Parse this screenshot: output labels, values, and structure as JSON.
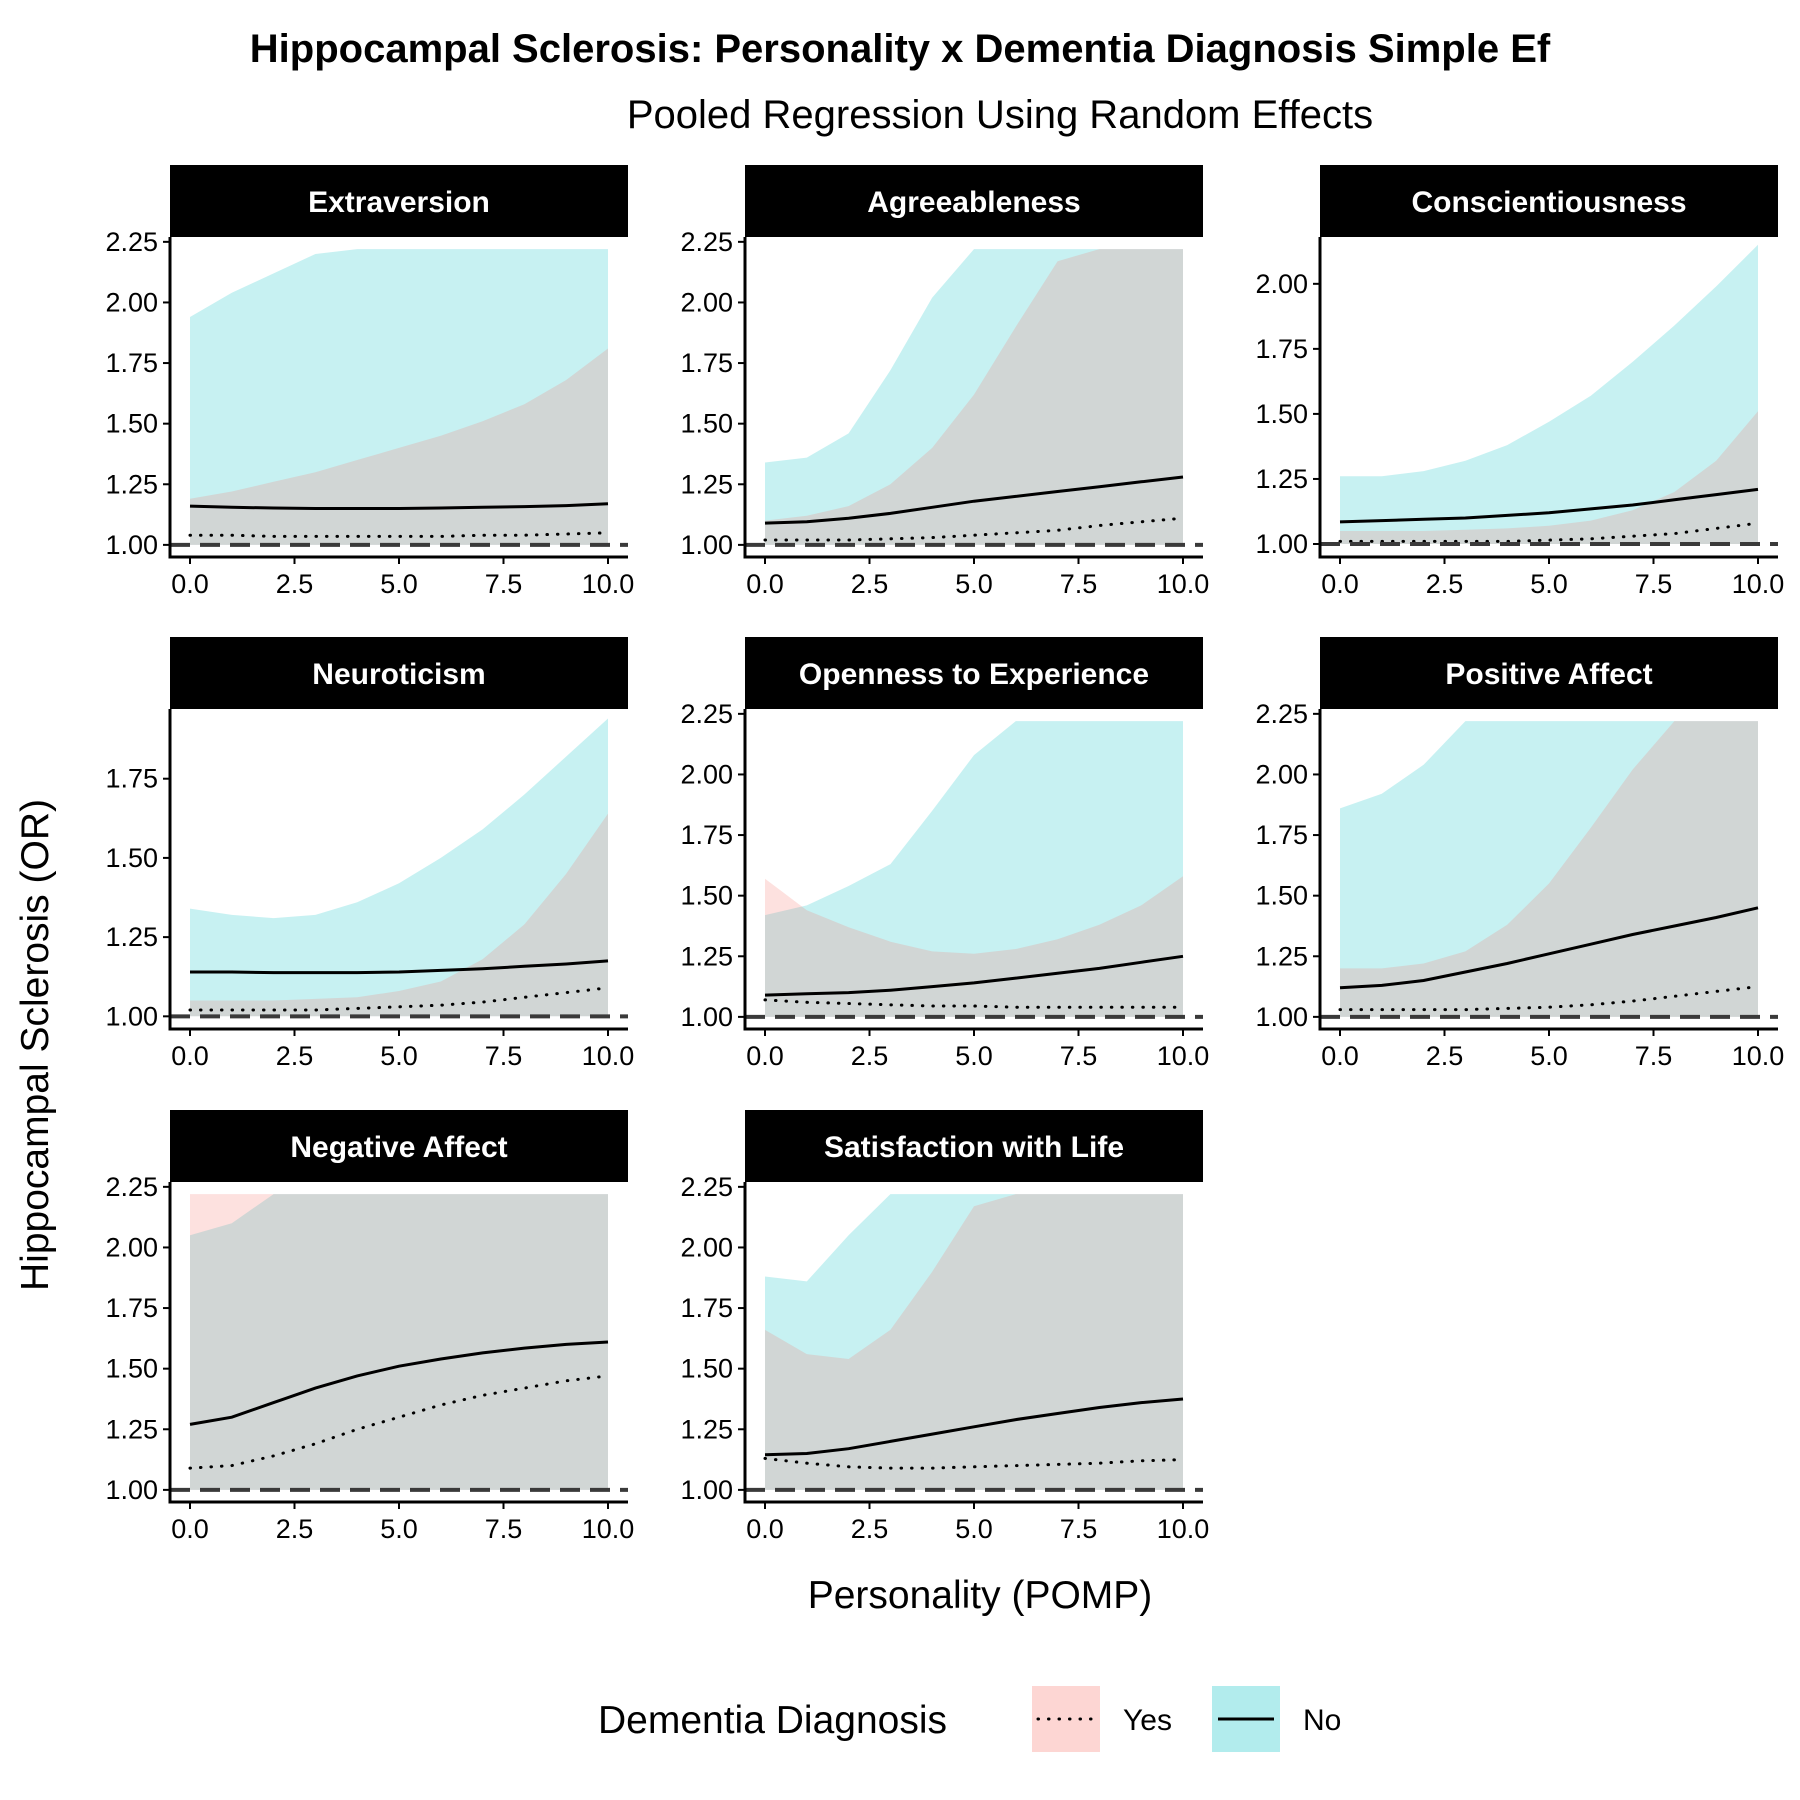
{
  "chart_data": {
    "type": "line",
    "title": "Hippocampal Sclerosis: Personality x Dementia Diagnosis Simple Ef",
    "subtitle": "Pooled Regression Using Random Effects",
    "xlabel": "Personality (POMP)",
    "ylabel": "Hippocampal Sclerosis (OR)",
    "reference_line": 1.0,
    "colors": {
      "yes_ribbon": "#f8766d",
      "no_ribbon": "#00bfc4",
      "line": "#000000",
      "strip": "#000000",
      "refline": "#3a3a3a"
    },
    "legend": {
      "title": "Dementia Diagnosis",
      "placement": "bottom",
      "items": [
        {
          "label": "Yes",
          "linetype": "dotted",
          "fill": "#f8766d"
        },
        {
          "label": "No",
          "linetype": "solid",
          "fill": "#00bfc4"
        }
      ]
    },
    "panels": [
      {
        "name": "Extraversion",
        "ylim": [
          0.95,
          2.27
        ],
        "yticks": [
          "1.00",
          "1.25",
          "1.50",
          "1.75",
          "2.00",
          "2.25"
        ],
        "xticks": [
          "0.0",
          "2.5",
          "5.0",
          "7.5",
          "10.0"
        ],
        "x": [
          0,
          1,
          2,
          3,
          4,
          5,
          6,
          7,
          8,
          9,
          10
        ],
        "yes": {
          "est": [
            1.04,
            1.04,
            1.035,
            1.035,
            1.035,
            1.035,
            1.035,
            1.04,
            1.04,
            1.045,
            1.05
          ],
          "lo": [
            1.0,
            1.0,
            1.0,
            1.0,
            1.0,
            1.0,
            1.0,
            1.0,
            1.0,
            1.0,
            1.0
          ],
          "hi": [
            1.19,
            1.22,
            1.26,
            1.3,
            1.35,
            1.4,
            1.45,
            1.51,
            1.58,
            1.68,
            1.81
          ]
        },
        "no": {
          "est": [
            1.16,
            1.155,
            1.152,
            1.15,
            1.15,
            1.15,
            1.152,
            1.155,
            1.158,
            1.162,
            1.17
          ],
          "lo": [
            1.0,
            1.0,
            1.0,
            1.0,
            1.0,
            1.0,
            1.0,
            1.0,
            1.0,
            1.0,
            1.0
          ],
          "hi": [
            1.94,
            2.04,
            2.12,
            2.2,
            2.22,
            2.22,
            2.22,
            2.22,
            2.22,
            2.22,
            2.22
          ]
        }
      },
      {
        "name": "Agreeableness",
        "ylim": [
          0.95,
          2.27
        ],
        "yticks": [
          "1.00",
          "1.25",
          "1.50",
          "1.75",
          "2.00",
          "2.25"
        ],
        "xticks": [
          "0.0",
          "2.5",
          "5.0",
          "7.5",
          "10.0"
        ],
        "x": [
          0,
          1,
          2,
          3,
          4,
          5,
          6,
          7,
          8,
          9,
          10
        ],
        "yes": {
          "est": [
            1.02,
            1.02,
            1.02,
            1.025,
            1.03,
            1.04,
            1.05,
            1.06,
            1.08,
            1.095,
            1.11
          ],
          "lo": [
            1.0,
            1.0,
            1.0,
            1.0,
            1.0,
            1.0,
            1.0,
            1.0,
            1.0,
            1.0,
            1.0
          ],
          "hi": [
            1.1,
            1.12,
            1.16,
            1.25,
            1.4,
            1.62,
            1.9,
            2.17,
            2.22,
            2.22,
            2.22
          ]
        },
        "no": {
          "est": [
            1.09,
            1.095,
            1.11,
            1.13,
            1.155,
            1.18,
            1.2,
            1.22,
            1.24,
            1.26,
            1.28
          ],
          "lo": [
            1.0,
            1.0,
            1.0,
            1.0,
            1.0,
            1.0,
            1.0,
            1.0,
            1.0,
            1.0,
            1.0
          ],
          "hi": [
            1.34,
            1.36,
            1.46,
            1.72,
            2.02,
            2.22,
            2.22,
            2.22,
            2.22,
            2.22,
            2.22
          ]
        }
      },
      {
        "name": "Conscientiousness",
        "ylim": [
          0.95,
          2.18
        ],
        "yticks": [
          "1.00",
          "1.25",
          "1.50",
          "1.75",
          "2.00"
        ],
        "xticks": [
          "0.0",
          "2.5",
          "5.0",
          "7.5",
          "10.0"
        ],
        "x": [
          0,
          1,
          2,
          3,
          4,
          5,
          6,
          7,
          8,
          9,
          10
        ],
        "yes": {
          "est": [
            1.01,
            1.01,
            1.01,
            1.01,
            1.01,
            1.015,
            1.02,
            1.03,
            1.04,
            1.06,
            1.08
          ],
          "lo": [
            1.0,
            1.0,
            1.0,
            1.0,
            1.0,
            1.0,
            1.0,
            1.0,
            1.0,
            1.0,
            1.0
          ],
          "hi": [
            1.05,
            1.05,
            1.05,
            1.055,
            1.06,
            1.07,
            1.09,
            1.13,
            1.2,
            1.32,
            1.51
          ]
        },
        "no": {
          "est": [
            1.085,
            1.09,
            1.095,
            1.1,
            1.11,
            1.12,
            1.135,
            1.15,
            1.17,
            1.19,
            1.21
          ],
          "lo": [
            1.0,
            1.0,
            1.0,
            1.0,
            1.0,
            1.0,
            1.0,
            1.0,
            1.0,
            1.0,
            1.0
          ],
          "hi": [
            1.26,
            1.26,
            1.28,
            1.32,
            1.38,
            1.47,
            1.57,
            1.7,
            1.84,
            1.99,
            2.15
          ]
        }
      },
      {
        "name": "Neuroticism",
        "ylim": [
          0.96,
          1.97
        ],
        "yticks": [
          "1.00",
          "1.25",
          "1.50",
          "1.75"
        ],
        "xticks": [
          "0.0",
          "2.5",
          "5.0",
          "7.5",
          "10.0"
        ],
        "x": [
          0,
          1,
          2,
          3,
          4,
          5,
          6,
          7,
          8,
          9,
          10
        ],
        "yes": {
          "est": [
            1.02,
            1.02,
            1.02,
            1.02,
            1.025,
            1.03,
            1.035,
            1.045,
            1.06,
            1.075,
            1.09
          ],
          "lo": [
            1.0,
            1.0,
            1.0,
            1.0,
            1.0,
            1.0,
            1.0,
            1.0,
            1.0,
            1.0,
            1.0
          ],
          "hi": [
            1.05,
            1.05,
            1.05,
            1.055,
            1.06,
            1.08,
            1.11,
            1.18,
            1.29,
            1.45,
            1.64
          ]
        },
        "no": {
          "est": [
            1.14,
            1.14,
            1.138,
            1.138,
            1.138,
            1.14,
            1.145,
            1.15,
            1.158,
            1.165,
            1.175
          ],
          "lo": [
            1.0,
            1.0,
            1.0,
            1.0,
            1.0,
            1.0,
            1.0,
            1.0,
            1.0,
            1.0,
            1.0
          ],
          "hi": [
            1.34,
            1.32,
            1.31,
            1.32,
            1.36,
            1.42,
            1.5,
            1.59,
            1.7,
            1.82,
            1.94
          ]
        }
      },
      {
        "name": "Openness to Experience",
        "ylim": [
          0.95,
          2.27
        ],
        "yticks": [
          "1.00",
          "1.25",
          "1.50",
          "1.75",
          "2.00",
          "2.25"
        ],
        "xticks": [
          "0.0",
          "2.5",
          "5.0",
          "7.5",
          "10.0"
        ],
        "x": [
          0,
          1,
          2,
          3,
          4,
          5,
          6,
          7,
          8,
          9,
          10
        ],
        "yes": {
          "est": [
            1.07,
            1.06,
            1.055,
            1.05,
            1.045,
            1.045,
            1.04,
            1.04,
            1.04,
            1.04,
            1.04
          ],
          "lo": [
            1.0,
            1.0,
            1.0,
            1.0,
            1.0,
            1.0,
            1.0,
            1.0,
            1.0,
            1.0,
            1.0
          ],
          "hi": [
            1.57,
            1.44,
            1.37,
            1.31,
            1.27,
            1.26,
            1.28,
            1.32,
            1.38,
            1.46,
            1.58
          ]
        },
        "no": {
          "est": [
            1.09,
            1.095,
            1.1,
            1.11,
            1.125,
            1.14,
            1.16,
            1.18,
            1.2,
            1.225,
            1.25
          ],
          "lo": [
            1.0,
            1.0,
            1.0,
            1.0,
            1.0,
            1.0,
            1.0,
            1.0,
            1.0,
            1.0,
            1.0
          ],
          "hi": [
            1.42,
            1.46,
            1.54,
            1.63,
            1.85,
            2.08,
            2.22,
            2.22,
            2.22,
            2.22,
            2.22
          ]
        }
      },
      {
        "name": "Positive Affect",
        "ylim": [
          0.95,
          2.27
        ],
        "yticks": [
          "1.00",
          "1.25",
          "1.50",
          "1.75",
          "2.00",
          "2.25"
        ],
        "xticks": [
          "0.0",
          "2.5",
          "5.0",
          "7.5",
          "10.0"
        ],
        "x": [
          0,
          1,
          2,
          3,
          4,
          5,
          6,
          7,
          8,
          9,
          10
        ],
        "yes": {
          "est": [
            1.03,
            1.03,
            1.03,
            1.03,
            1.035,
            1.04,
            1.05,
            1.065,
            1.085,
            1.105,
            1.125
          ],
          "lo": [
            1.0,
            1.0,
            1.0,
            1.0,
            1.0,
            1.0,
            1.0,
            1.0,
            1.0,
            1.0,
            1.0
          ],
          "hi": [
            1.2,
            1.2,
            1.22,
            1.27,
            1.38,
            1.55,
            1.78,
            2.02,
            2.22,
            2.22,
            2.22
          ]
        },
        "no": {
          "est": [
            1.12,
            1.13,
            1.15,
            1.185,
            1.22,
            1.26,
            1.3,
            1.34,
            1.375,
            1.41,
            1.45
          ],
          "lo": [
            1.0,
            1.0,
            1.0,
            1.0,
            1.0,
            1.0,
            1.0,
            1.0,
            1.0,
            1.0,
            1.0
          ],
          "hi": [
            1.86,
            1.92,
            2.04,
            2.22,
            2.22,
            2.22,
            2.22,
            2.22,
            2.22,
            2.22,
            2.22
          ]
        }
      },
      {
        "name": "Negative Affect",
        "ylim": [
          0.95,
          2.27
        ],
        "yticks": [
          "1.00",
          "1.25",
          "1.50",
          "1.75",
          "2.00",
          "2.25"
        ],
        "xticks": [
          "0.0",
          "2.5",
          "5.0",
          "7.5",
          "10.0"
        ],
        "x": [
          0,
          1,
          2,
          3,
          4,
          5,
          6,
          7,
          8,
          9,
          10
        ],
        "yes": {
          "est": [
            1.09,
            1.1,
            1.14,
            1.19,
            1.25,
            1.3,
            1.35,
            1.39,
            1.42,
            1.45,
            1.47
          ],
          "lo": [
            1.0,
            1.0,
            1.0,
            1.0,
            1.0,
            1.0,
            1.0,
            1.0,
            1.0,
            1.0,
            1.0
          ],
          "hi": [
            2.22,
            2.22,
            2.22,
            2.22,
            2.22,
            2.22,
            2.22,
            2.22,
            2.22,
            2.22,
            2.22
          ]
        },
        "no": {
          "est": [
            1.27,
            1.3,
            1.36,
            1.42,
            1.47,
            1.51,
            1.54,
            1.565,
            1.585,
            1.6,
            1.61
          ],
          "lo": [
            1.0,
            1.0,
            1.0,
            1.0,
            1.0,
            1.0,
            1.0,
            1.0,
            1.0,
            1.0,
            1.0
          ],
          "hi": [
            2.05,
            2.1,
            2.22,
            2.22,
            2.22,
            2.22,
            2.22,
            2.22,
            2.22,
            2.22,
            2.22
          ]
        }
      },
      {
        "name": "Satisfaction with Life",
        "ylim": [
          0.95,
          2.27
        ],
        "yticks": [
          "1.00",
          "1.25",
          "1.50",
          "1.75",
          "2.00",
          "2.25"
        ],
        "xticks": [
          "0.0",
          "2.5",
          "5.0",
          "7.5",
          "10.0"
        ],
        "x": [
          0,
          1,
          2,
          3,
          4,
          5,
          6,
          7,
          8,
          9,
          10
        ],
        "yes": {
          "est": [
            1.13,
            1.11,
            1.095,
            1.09,
            1.09,
            1.095,
            1.1,
            1.105,
            1.11,
            1.12,
            1.125
          ],
          "lo": [
            1.0,
            1.0,
            1.0,
            1.0,
            1.0,
            1.0,
            1.0,
            1.0,
            1.0,
            1.0,
            1.0
          ],
          "hi": [
            1.66,
            1.56,
            1.54,
            1.66,
            1.9,
            2.17,
            2.22,
            2.22,
            2.22,
            2.22,
            2.22
          ]
        },
        "no": {
          "est": [
            1.145,
            1.15,
            1.17,
            1.2,
            1.23,
            1.26,
            1.29,
            1.315,
            1.34,
            1.36,
            1.375
          ],
          "lo": [
            1.0,
            1.0,
            1.0,
            1.0,
            1.0,
            1.0,
            1.0,
            1.0,
            1.0,
            1.0,
            1.0
          ],
          "hi": [
            1.88,
            1.86,
            2.05,
            2.22,
            2.22,
            2.22,
            2.22,
            2.22,
            2.22,
            2.22,
            2.22
          ]
        }
      }
    ]
  }
}
